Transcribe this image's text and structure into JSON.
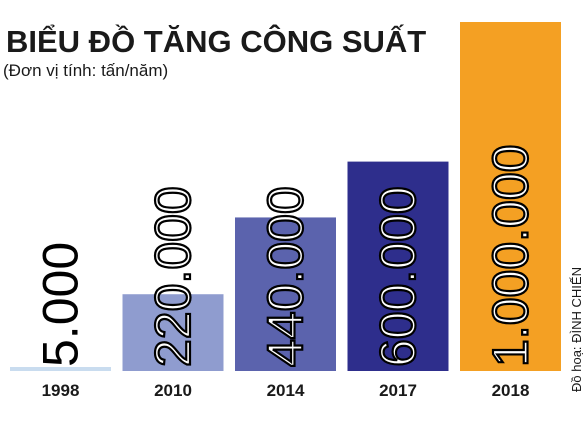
{
  "chart_data": {
    "type": "bar",
    "title": "BIỂU ĐỒ TĂNG CÔNG SUẤT",
    "subtitle": "(Đơn vị tính: tấn/năm)",
    "categories": [
      "1998",
      "2010",
      "2014",
      "2017",
      "2018"
    ],
    "values": [
      5000,
      220000,
      440000,
      600000,
      1000000
    ],
    "value_labels": [
      "5.000",
      "220.000",
      "440.000",
      "600.000",
      "1.000.000"
    ],
    "colors": [
      "#c9dcef",
      "#8f9ccf",
      "#5b63ad",
      "#2e2e8c",
      "#f4a023"
    ],
    "ylim": [
      0,
      1000000
    ],
    "credit": "Đồ hoạ: ĐÌNH CHIẾN"
  }
}
